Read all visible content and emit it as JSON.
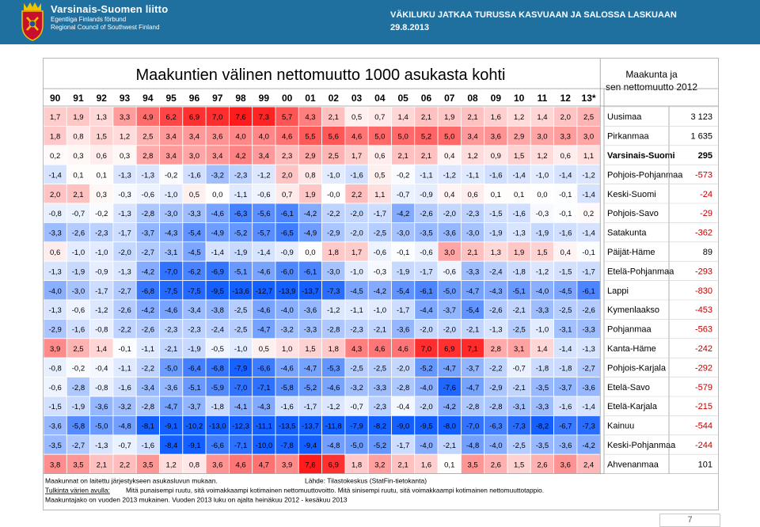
{
  "header": {
    "org_name": "Varsinais-Suomen liitto",
    "org_name_sv": "Egentliga Finlands förbund",
    "org_name_en": "Regional Council of Southwest Finland",
    "headline": "VÄKILUKU JATKAA TURUSSA KASVUAAN JA SALOSSA LASKUAAN",
    "date": "29.8.2013",
    "bar_color": "#1f6f9f"
  },
  "page_number": "7",
  "chart_data": {
    "type": "heatmap",
    "title": "Maakuntien välinen nettomuutto 1000 asukasta kohti",
    "side_header": [
      "Maakunta ja",
      "sen nettomuutto 2012"
    ],
    "columns": [
      "90",
      "91",
      "92",
      "93",
      "94",
      "95",
      "96",
      "97",
      "98",
      "99",
      "00",
      "01",
      "02",
      "03",
      "04",
      "05",
      "06",
      "07",
      "08",
      "09",
      "10",
      "11",
      "12",
      "13*"
    ],
    "color_positive": "#ff0000",
    "color_negative": "#0066ff",
    "rows": [
      {
        "name": "Uusimaa",
        "net_2012": "3 123",
        "values": [
          "1,7",
          "1,9",
          "1,3",
          "3,3",
          "4,9",
          "6,2",
          "6,9",
          "7,0",
          "7,6",
          "7,3",
          "5,7",
          "4,3",
          "2,1",
          "0,5",
          "0,7",
          "1,4",
          "2,1",
          "1,9",
          "2,1",
          "1,6",
          "1,2",
          "1,4",
          "2,0",
          "2,5"
        ]
      },
      {
        "name": "Pirkanmaa",
        "net_2012": "1 635",
        "values": [
          "1,8",
          "0,8",
          "1,5",
          "1,2",
          "2,5",
          "3,4",
          "3,4",
          "3,6",
          "4,0",
          "4,0",
          "4,6",
          "5,5",
          "5,6",
          "4,6",
          "5,0",
          "5,0",
          "5,2",
          "5,0",
          "3,4",
          "3,6",
          "2,9",
          "3,0",
          "3,3",
          "3,0"
        ]
      },
      {
        "name": "Varsinais-Suomi",
        "net_2012": "295",
        "bold": true,
        "values": [
          "0,2",
          "0,3",
          "0,6",
          "0,3",
          "2,8",
          "3,4",
          "3,0",
          "3,4",
          "4,2",
          "3,4",
          "2,3",
          "2,9",
          "2,5",
          "1,7",
          "0,6",
          "2,1",
          "2,1",
          "0,4",
          "1,2",
          "0,9",
          "1,5",
          "1,2",
          "0,6",
          "1,1"
        ]
      },
      {
        "name": "Pohjois-Pohjanmaa",
        "net_2012": "-573",
        "values": [
          "-1,4",
          "0,1",
          "0,1",
          "-1,3",
          "-1,3",
          "-0,2",
          "-1,6",
          "-3,2",
          "-2,3",
          "-1,2",
          "2,0",
          "0,8",
          "-1,0",
          "-1,6",
          "0,5",
          "-0,2",
          "-1,1",
          "-1,2",
          "-1,1",
          "-1,6",
          "-1,4",
          "-1,0",
          "-1,4",
          "-1,2"
        ]
      },
      {
        "name": "Keski-Suomi",
        "net_2012": "-24",
        "values": [
          "2,0",
          "2,1",
          "0,3",
          "-0,3",
          "-0,6",
          "-1,0",
          "0,5",
          "0,0",
          "-1,1",
          "-0,6",
          "0,7",
          "1,9",
          "-0,0",
          "2,2",
          "1,1",
          "-0,7",
          "-0,9",
          "0,4",
          "0,6",
          "0,1",
          "0,1",
          "0,0",
          "-0,1",
          "-1,4"
        ]
      },
      {
        "name": "Pohjois-Savo",
        "net_2012": "-29",
        "values": [
          "-0,8",
          "-0,7",
          "-0,2",
          "-1,3",
          "-2,8",
          "-3,0",
          "-3,3",
          "-4,6",
          "-6,3",
          "-5,6",
          "-6,1",
          "-4,2",
          "-2,2",
          "-2,0",
          "-1,7",
          "-4,2",
          "-2,6",
          "-2,0",
          "-2,3",
          "-1,5",
          "-1,6",
          "-0,3",
          "-0,1",
          "0,2"
        ]
      },
      {
        "name": "Satakunta",
        "net_2012": "-362",
        "values": [
          "-3,3",
          "-2,6",
          "-2,3",
          "-1,7",
          "-3,7",
          "-4,3",
          "-5,4",
          "-4,9",
          "-5,2",
          "-5,7",
          "-6,5",
          "-4,9",
          "-2,9",
          "-2,0",
          "-2,5",
          "-3,0",
          "-3,5",
          "-3,6",
          "-3,0",
          "-1,9",
          "-1,3",
          "-1,9",
          "-1,6",
          "-1,4"
        ]
      },
      {
        "name": "Päijät-Häme",
        "net_2012": "89",
        "values": [
          "0,6",
          "-1,0",
          "-1,0",
          "-2,0",
          "-2,7",
          "-3,1",
          "-4,5",
          "-1,4",
          "-1,9",
          "-1,4",
          "-0,9",
          "0,0",
          "1,8",
          "1,7",
          "-0,6",
          "-0,1",
          "-0,6",
          "3,0",
          "2,1",
          "1,3",
          "1,9",
          "1,5",
          "0,4",
          "-0,1"
        ]
      },
      {
        "name": "Etelä-Pohjanmaa",
        "net_2012": "-293",
        "values": [
          "-1,3",
          "-1,9",
          "-0,9",
          "-1,3",
          "-4,2",
          "-7,0",
          "-6,2",
          "-6,9",
          "-5,1",
          "-4,6",
          "-6,0",
          "-6,1",
          "-3,0",
          "-1,0",
          "-0,3",
          "-1,9",
          "-1,7",
          "-0,6",
          "-3,3",
          "-2,4",
          "-1,8",
          "-1,2",
          "-1,5",
          "-1,7"
        ]
      },
      {
        "name": "Lappi",
        "net_2012": "-830",
        "values": [
          "-4,0",
          "-3,0",
          "-1,7",
          "-2,7",
          "-6,8",
          "-7,5",
          "-7,5",
          "-9,5",
          "-13,6",
          "-12,7",
          "-13,9",
          "-13,7",
          "-7,3",
          "-4,5",
          "-4,2",
          "-5,4",
          "-6,1",
          "-5,0",
          "-4,7",
          "-4,3",
          "-5,1",
          "-4,0",
          "-4,5",
          "-6,1"
        ]
      },
      {
        "name": "Kymenlaakso",
        "net_2012": "-453",
        "values": [
          "-1,3",
          "-0,6",
          "-1,2",
          "-2,6",
          "-4,2",
          "-4,6",
          "-3,4",
          "-3,8",
          "-2,5",
          "-4,6",
          "-4,0",
          "-3,6",
          "-1,2",
          "-1,1",
          "-1,0",
          "-1,7",
          "-4,4",
          "-3,7",
          "-5,4",
          "-2,6",
          "-2,1",
          "-3,3",
          "-2,5",
          "-2,6"
        ]
      },
      {
        "name": "Pohjanmaa",
        "net_2012": "-563",
        "values": [
          "-2,9",
          "-1,6",
          "-0,8",
          "-2,2",
          "-2,6",
          "-2,3",
          "-2,3",
          "-2,4",
          "-2,5",
          "-4,7",
          "-3,2",
          "-3,3",
          "-2,8",
          "-2,3",
          "-2,1",
          "-3,6",
          "-2,0",
          "-2,0",
          "-2,1",
          "-1,3",
          "-2,5",
          "-1,0",
          "-3,1",
          "-3,3"
        ]
      },
      {
        "name": "Kanta-Häme",
        "net_2012": "-242",
        "values": [
          "3,9",
          "2,5",
          "1,4",
          "-0,1",
          "-1,1",
          "-2,1",
          "-1,9",
          "-0,5",
          "-1,0",
          "0,5",
          "1,0",
          "1,5",
          "1,8",
          "4,3",
          "4,6",
          "4,6",
          "7,0",
          "6,9",
          "7,1",
          "2,8",
          "3,1",
          "1,4",
          "-1,4",
          "-1,3"
        ]
      },
      {
        "name": "Pohjois-Karjala",
        "net_2012": "-292",
        "values": [
          "-0,8",
          "-0,2",
          "-0,4",
          "-1,1",
          "-2,2",
          "-5,0",
          "-6,4",
          "-6,8",
          "-7,9",
          "-6,6",
          "-4,6",
          "-4,7",
          "-5,3",
          "-2,5",
          "-2,5",
          "-2,0",
          "-5,2",
          "-4,7",
          "-3,7",
          "-2,2",
          "-0,7",
          "-1,8",
          "-1,8",
          "-2,7"
        ]
      },
      {
        "name": "Etelä-Savo",
        "net_2012": "-579",
        "values": [
          "-0,6",
          "-2,8",
          "-0,8",
          "-1,6",
          "-3,4",
          "-3,6",
          "-5,1",
          "-5,9",
          "-7,0",
          "-7,1",
          "-5,8",
          "-5,2",
          "-4,6",
          "-3,2",
          "-3,3",
          "-2,8",
          "-4,0",
          "-7,6",
          "-4,7",
          "-2,9",
          "-2,1",
          "-3,5",
          "-3,7",
          "-3,6"
        ]
      },
      {
        "name": "Etelä-Karjala",
        "net_2012": "-215",
        "values": [
          "-1,5",
          "-1,9",
          "-3,6",
          "-3,2",
          "-2,8",
          "-4,7",
          "-3,7",
          "-1,8",
          "-4,1",
          "-4,3",
          "-1,6",
          "-1,7",
          "-1,2",
          "-0,7",
          "-2,3",
          "-0,4",
          "-2,0",
          "-4,2",
          "-2,8",
          "-2,8",
          "-3,1",
          "-3,3",
          "-1,6",
          "-1,4"
        ]
      },
      {
        "name": "Kainuu",
        "net_2012": "-544",
        "values": [
          "-3,6",
          "-5,8",
          "-5,0",
          "-4,8",
          "-8,1",
          "-9,1",
          "-10,2",
          "-13,0",
          "-12,3",
          "-11,1",
          "-13,5",
          "-13,7",
          "-11,8",
          "-7,9",
          "-8,2",
          "-9,0",
          "-9,5",
          "-8,0",
          "-7,0",
          "-6,3",
          "-7,3",
          "-8,2",
          "-6,7",
          "-7,3"
        ]
      },
      {
        "name": "Keski-Pohjanmaa",
        "net_2012": "-244",
        "values": [
          "-3,5",
          "-2,7",
          "-1,3",
          "-0,7",
          "-1,6",
          "-8,4",
          "-9,1",
          "-6,6",
          "-7,1",
          "-10,0",
          "-7,8",
          "-9,4",
          "-4,8",
          "-5,0",
          "-5,2",
          "-1,7",
          "-4,0",
          "-2,1",
          "-4,8",
          "-4,0",
          "-2,5",
          "-3,5",
          "-3,6",
          "-4,2"
        ]
      },
      {
        "name": "Ahvenanmaa",
        "net_2012": "101",
        "values": [
          "3,8",
          "3,5",
          "2,1",
          "2,2",
          "3,5",
          "1,2",
          "0,8",
          "3,6",
          "4,6",
          "4,7",
          "3,9",
          "7,6",
          "6,9",
          "1,8",
          "3,2",
          "2,1",
          "1,6",
          "0,1",
          "3,5",
          "2,6",
          "1,5",
          "2,6",
          "3,6",
          "2,4"
        ]
      }
    ],
    "footnotes": {
      "order": "Maakunnat on laitettu järjestykseen asukasluvun mukaan.",
      "source": "Lähde: Tilastokeskus (StatFin-tietokanta)",
      "legend_label": "Tulkinta värien avulla:",
      "legend_text": "Mitä punaisempi ruutu, sitä voimakkaampi kotimainen nettomuuttovoitto. Mitä sinisempi ruutu, sitä voimakkaampi kotimainen nettomuuttotappio.",
      "division": "Maakuntajako on vuoden 2013 mukainen. Vuoden 2013 luku on ajalta heinäkuu 2012 - kesäkuu 2013"
    }
  }
}
